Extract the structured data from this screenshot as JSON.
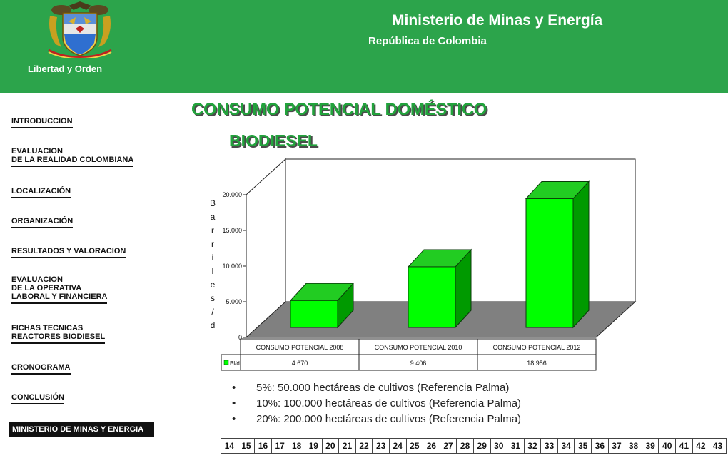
{
  "header": {
    "ministry": "Ministerio de Minas y Energía",
    "republic": "República de Colombia",
    "motto": "Libertad y Orden",
    "bg_color": "#2ca44b"
  },
  "sidebar": {
    "items": [
      {
        "label": "INTRODUCCION"
      },
      {
        "label": "EVALUACION\nDE LA REALIDAD COLOMBIANA"
      },
      {
        "label": "LOCALIZACIÓN"
      },
      {
        "label": "ORGANIZACIÓN"
      },
      {
        "label": "RESULTADOS Y VALORACION"
      },
      {
        "label": "EVALUACION\nDE LA OPERATIVA\nLABORAL Y FINANCIERA"
      },
      {
        "label": "FICHAS TECNICAS\nREACTORES BIODIESEL"
      },
      {
        "label": "CRONOGRAMA"
      },
      {
        "label": "CONCLUSIÓN"
      }
    ],
    "active_item": "MINISTERIO DE MINAS Y ENERGIA"
  },
  "titles": {
    "main": "CONSUMO POTENCIAL DOMÉSTICO",
    "sub": "BIODIESEL"
  },
  "chart_data": {
    "type": "bar",
    "categories": [
      "CONSUMO POTENCIAL 2008",
      "CONSUMO POTENCIAL 2010",
      "CONSUMO POTENCIAL 2012"
    ],
    "series": [
      {
        "name": "Bl/d",
        "values": [
          4670,
          9406,
          18956
        ]
      }
    ],
    "value_labels": [
      "4.670",
      "9.406",
      "18.956"
    ],
    "ylabel": "Barriles/d",
    "ylim": [
      0,
      20000
    ],
    "yticks": [
      0,
      5000,
      10000,
      15000,
      20000
    ],
    "ytick_labels": [
      "0",
      "5.000",
      "10.000",
      "15.000",
      "20.000"
    ],
    "bar_color": "#00ff00",
    "floor_color": "#808080",
    "legend_placement": "data-table"
  },
  "bullets": [
    "5%: 50.000 hectáreas de cultivos (Referencia Palma)",
    "10%: 100.000 hectáreas de cultivos (Referencia Palma)",
    "20%: 200.000 hectáreas de cultivos (Referencia Palma)"
  ],
  "pages": [
    "14",
    "15",
    "16",
    "17",
    "18",
    "19",
    "20",
    "21",
    "22",
    "23",
    "24",
    "25",
    "26",
    "27",
    "28",
    "29",
    "30",
    "31",
    "32",
    "33",
    "34",
    "35",
    "36",
    "37",
    "38",
    "39",
    "40",
    "41",
    "42",
    "43"
  ]
}
